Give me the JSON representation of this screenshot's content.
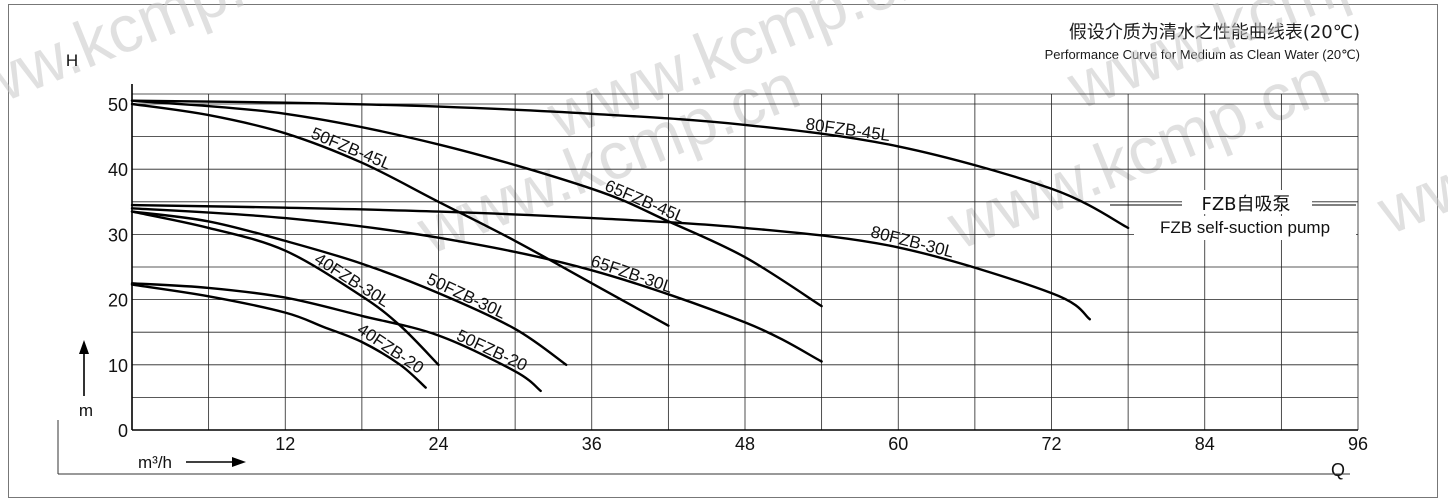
{
  "header": {
    "title_cn": "假设介质为清水之性能曲线表(20℃)",
    "title_en": "Performance Curve for Medium as Clean Water (20℃)"
  },
  "legend": {
    "label_cn": "FZB自吸泵",
    "label_en": "FZB self-suction pump"
  },
  "watermark": "www.kcmp.cn",
  "chart_data": {
    "type": "line",
    "title": "假设介质为清水之性能曲线表(20℃)",
    "subtitle": "Performance Curve for Medium as Clean Water (20℃)",
    "ylabel": "H",
    "yunit": "m",
    "xlabel": "Q",
    "xunit": "m³/h",
    "xlim": [
      0,
      96
    ],
    "ylim": [
      0,
      50
    ],
    "xticks": [
      12,
      24,
      36,
      48,
      60,
      72,
      84,
      96
    ],
    "yticks": [
      0,
      10,
      20,
      30,
      40,
      50
    ],
    "grid": true,
    "series": [
      {
        "name": "80FZB-45L",
        "x": [
          0,
          12,
          24,
          36,
          48,
          60,
          72,
          78
        ],
        "y": [
          50.5,
          50.2,
          49.6,
          48.5,
          46.8,
          43.5,
          37.0,
          31.0
        ]
      },
      {
        "name": "50FZB-45L",
        "x": [
          0,
          6,
          12,
          18,
          24,
          30,
          36,
          42
        ],
        "y": [
          50,
          48.3,
          45.5,
          41.0,
          35.0,
          29.0,
          22.5,
          16.0
        ]
      },
      {
        "name": "65FZB-45L",
        "x": [
          0,
          12,
          24,
          36,
          42,
          48,
          54
        ],
        "y": [
          50.5,
          48.5,
          43.8,
          37.0,
          32.0,
          26.5,
          19.0
        ]
      },
      {
        "name": "80FZB-30L",
        "x": [
          0,
          12,
          24,
          36,
          48,
          60,
          72,
          75
        ],
        "y": [
          34.5,
          34.1,
          33.5,
          32.5,
          31.0,
          28.0,
          21.0,
          17.0
        ]
      },
      {
        "name": "65FZB-30L",
        "x": [
          0,
          12,
          24,
          36,
          48,
          54
        ],
        "y": [
          34.0,
          32.5,
          29.5,
          24.5,
          16.5,
          10.5
        ]
      },
      {
        "name": "50FZB-30L",
        "x": [
          0,
          6,
          12,
          18,
          24,
          30,
          34
        ],
        "y": [
          33.5,
          32.0,
          29.0,
          25.5,
          21.0,
          15.5,
          10.0
        ]
      },
      {
        "name": "40FZB-30L",
        "x": [
          0,
          6,
          12,
          18,
          21,
          24
        ],
        "y": [
          33.5,
          31.0,
          27.5,
          20.5,
          16.0,
          10.0
        ]
      },
      {
        "name": "50FZB-20",
        "x": [
          0,
          6,
          12,
          18,
          24,
          30,
          32
        ],
        "y": [
          22.5,
          21.8,
          20.3,
          17.5,
          14.5,
          9.0,
          6.0
        ]
      },
      {
        "name": "40FZB-20",
        "x": [
          0,
          6,
          12,
          15,
          18,
          21,
          23
        ],
        "y": [
          22.3,
          20.5,
          18.0,
          15.8,
          13.5,
          10.0,
          6.5
        ]
      }
    ]
  }
}
